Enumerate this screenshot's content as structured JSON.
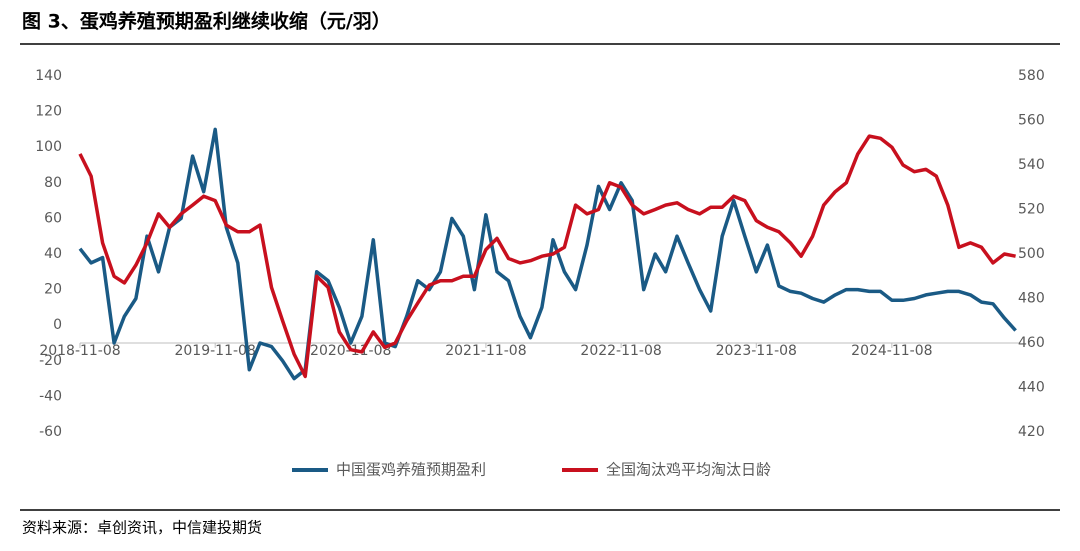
{
  "chart_data": {
    "type": "line",
    "title": "图 3、蛋鸡养殖预期盈利继续收缩（元/羽）",
    "source": "资料来源：卓创资讯，中信建投期货",
    "x": [
      "2018-11-08",
      "2018-12-08",
      "2019-01-08",
      "2019-02-08",
      "2019-03-08",
      "2019-04-08",
      "2019-05-08",
      "2019-06-08",
      "2019-07-08",
      "2019-08-08",
      "2019-09-08",
      "2019-10-08",
      "2019-11-08",
      "2019-12-08",
      "2020-01-08",
      "2020-02-08",
      "2020-03-08",
      "2020-04-08",
      "2020-05-08",
      "2020-06-08",
      "2020-07-08",
      "2020-08-08",
      "2020-09-08",
      "2020-10-08",
      "2020-11-08",
      "2020-12-08",
      "2021-01-08",
      "2021-02-08",
      "2021-03-08",
      "2021-04-08",
      "2021-05-08",
      "2021-06-08",
      "2021-07-08",
      "2021-08-08",
      "2021-09-08",
      "2021-10-08",
      "2021-11-08",
      "2021-12-08",
      "2022-01-08",
      "2022-02-08",
      "2022-03-08",
      "2022-04-08",
      "2022-05-08",
      "2022-06-08",
      "2022-07-08",
      "2022-08-08",
      "2022-09-08",
      "2022-10-08",
      "2022-11-08",
      "2022-12-08",
      "2023-01-08",
      "2023-02-08",
      "2023-03-08",
      "2023-04-08",
      "2023-05-08",
      "2023-06-08",
      "2023-07-08",
      "2023-08-08",
      "2023-09-08",
      "2023-10-08",
      "2023-11-08",
      "2023-12-08",
      "2024-01-08",
      "2024-02-08",
      "2024-03-08",
      "2024-04-08",
      "2024-05-08",
      "2024-06-08",
      "2024-07-08",
      "2024-08-08",
      "2024-09-08",
      "2024-10-08",
      "2024-11-08",
      "2024-12-08",
      "2025-01-08",
      "2025-02-08",
      "2025-03-08",
      "2025-04-08",
      "2025-05-08",
      "2025-06-08",
      "2025-07-08",
      "2025-08-08",
      "2025-09-08",
      "2025-10-08"
    ],
    "series": [
      {
        "name": "中国蛋鸡养殖预期盈利",
        "color": "#1a5a85",
        "axis": "y",
        "values": [
          43,
          35,
          38,
          -10,
          5,
          15,
          50,
          30,
          55,
          60,
          95,
          75,
          110,
          55,
          35,
          -25,
          -10,
          -12,
          -20,
          -30,
          -25,
          30,
          25,
          10,
          -10,
          5,
          48,
          -10,
          -12,
          5,
          25,
          20,
          30,
          60,
          50,
          20,
          62,
          30,
          25,
          5,
          -7,
          10,
          48,
          30,
          20,
          45,
          78,
          65,
          80,
          70,
          20,
          40,
          30,
          50,
          35,
          20,
          8,
          50,
          70,
          50,
          30,
          45,
          22,
          19,
          18,
          15,
          13,
          17,
          20,
          20,
          19,
          19,
          14,
          14,
          15,
          17,
          18,
          19,
          19,
          17,
          13,
          12,
          4,
          -3
        ]
      },
      {
        "name": "全国淘汰鸡平均淘汰日龄",
        "color": "#c8101e",
        "axis": "y2",
        "values": [
          545,
          535,
          505,
          490,
          487,
          495,
          505,
          518,
          512,
          518,
          522,
          526,
          524,
          513,
          510,
          510,
          513,
          485,
          470,
          455,
          445,
          490,
          485,
          465,
          457,
          456,
          465,
          458,
          460,
          470,
          478,
          486,
          488,
          488,
          490,
          490,
          502,
          507,
          498,
          496,
          497,
          499,
          500,
          503,
          522,
          518,
          520,
          532,
          530,
          522,
          518,
          520,
          522,
          523,
          520,
          518,
          521,
          521,
          526,
          524,
          515,
          512,
          510,
          505,
          499,
          508,
          522,
          528,
          532,
          545,
          553,
          552,
          548,
          540,
          537,
          538,
          535,
          522,
          503,
          505,
          503,
          496,
          500,
          499
        ]
      }
    ],
    "xlim": [
      "2018-11-08",
      "2025-10-20"
    ],
    "xticks": [
      "2018-11-08",
      "2019-11-08",
      "2020-11-08",
      "2021-11-08",
      "2022-11-08",
      "2023-11-08",
      "2024-11-08"
    ],
    "ylim": [
      -60,
      140
    ],
    "yticks": [
      140,
      120,
      100,
      80,
      60,
      40,
      20,
      0,
      -20,
      -40,
      -60
    ],
    "y2lim": [
      420,
      580
    ],
    "y2ticks": [
      580,
      560,
      540,
      520,
      500,
      480,
      460,
      440,
      420
    ]
  }
}
